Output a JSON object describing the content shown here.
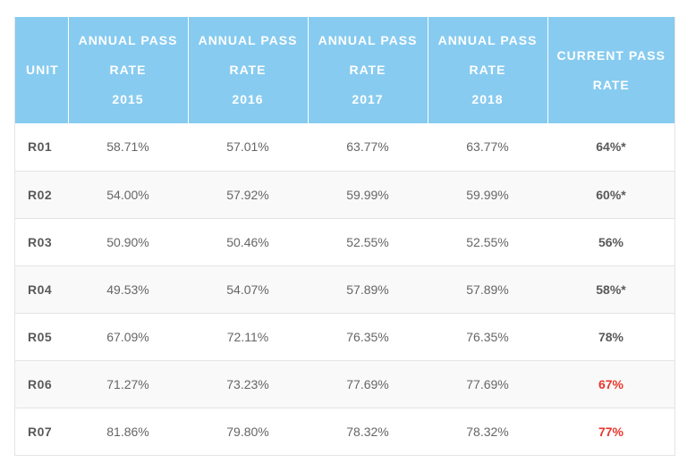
{
  "header": {
    "unit": "UNIT",
    "y2015": [
      "ANNUAL PASS",
      "RATE",
      "2015"
    ],
    "y2016": [
      "ANNUAL PASS",
      "RATE",
      "2016"
    ],
    "y2017": [
      "ANNUAL PASS",
      "RATE",
      "2017"
    ],
    "y2018": [
      "ANNUAL PASS",
      "RATE",
      "2018"
    ],
    "current": [
      "CURRENT PASS",
      "RATE"
    ]
  },
  "colors": {
    "header_bg": "#87cbf0",
    "alert": "#e8372c"
  },
  "rows": [
    {
      "unit": "R01",
      "y2015": "58.71%",
      "y2016": "57.01%",
      "y2017": "63.77%",
      "y2018": "63.77%",
      "current": "64%*",
      "alert": false
    },
    {
      "unit": "R02",
      "y2015": "54.00%",
      "y2016": "57.92%",
      "y2017": "59.99%",
      "y2018": "59.99%",
      "current": "60%*",
      "alert": false
    },
    {
      "unit": "R03",
      "y2015": "50.90%",
      "y2016": "50.46%",
      "y2017": "52.55%",
      "y2018": "52.55%",
      "current": "56%",
      "alert": false
    },
    {
      "unit": "R04",
      "y2015": "49.53%",
      "y2016": "54.07%",
      "y2017": "57.89%",
      "y2018": "57.89%",
      "current": "58%*",
      "alert": false
    },
    {
      "unit": "R05",
      "y2015": "67.09%",
      "y2016": "72.11%",
      "y2017": "76.35%",
      "y2018": "76.35%",
      "current": "78%",
      "alert": false
    },
    {
      "unit": "R06",
      "y2015": "71.27%",
      "y2016": "73.23%",
      "y2017": "77.69%",
      "y2018": "77.69%",
      "current": "67%",
      "alert": true
    },
    {
      "unit": "R07",
      "y2015": "81.86%",
      "y2016": "79.80%",
      "y2017": "78.32%",
      "y2018": "78.32%",
      "current": "77%",
      "alert": true
    }
  ]
}
